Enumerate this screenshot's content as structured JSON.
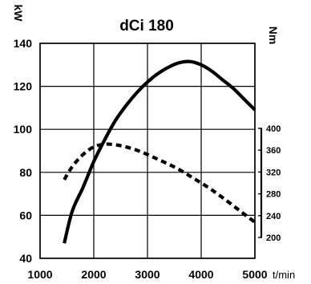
{
  "chart_data": {
    "type": "line",
    "title": "dCi 180",
    "xlabel": "t/min",
    "ylabel_left": "kW",
    "ylabel_right": "Nm",
    "xlim": [
      1000,
      5000
    ],
    "ylim_left": [
      40,
      140
    ],
    "ylim_right_ticks": [
      200,
      240,
      280,
      320,
      360,
      400
    ],
    "x_ticks": [
      1000,
      2000,
      3000,
      4000,
      5000
    ],
    "y_ticks_left": [
      40,
      60,
      80,
      100,
      120,
      140
    ],
    "grid": true,
    "series": [
      {
        "name": "",
        "axis": "left",
        "style": "solid",
        "x": [
          1450,
          1600,
          1800,
          2000,
          2200,
          2400,
          2600,
          2800,
          3000,
          3200,
          3400,
          3600,
          3800,
          4000,
          4200,
          4400,
          4600,
          4800,
          5000
        ],
        "y": [
          47,
          62,
          73,
          85,
          95,
          104,
          111,
          117,
          122,
          126,
          129,
          131,
          131.5,
          130,
          127,
          123,
          119,
          114,
          109
        ]
      },
      {
        "name": "",
        "axis": "right",
        "style": "dashed",
        "x": [
          1450,
          1600,
          1800,
          2000,
          2200,
          2400,
          2600,
          2800,
          3000,
          3200,
          3400,
          3600,
          3800,
          4000,
          4200,
          4400,
          4600,
          4800,
          5000
        ],
        "y": [
          306,
          330,
          352,
          366,
          371,
          370,
          366,
          360,
          352,
          343,
          334,
          324,
          312,
          300,
          287,
          273,
          258,
          243,
          228
        ]
      }
    ]
  }
}
